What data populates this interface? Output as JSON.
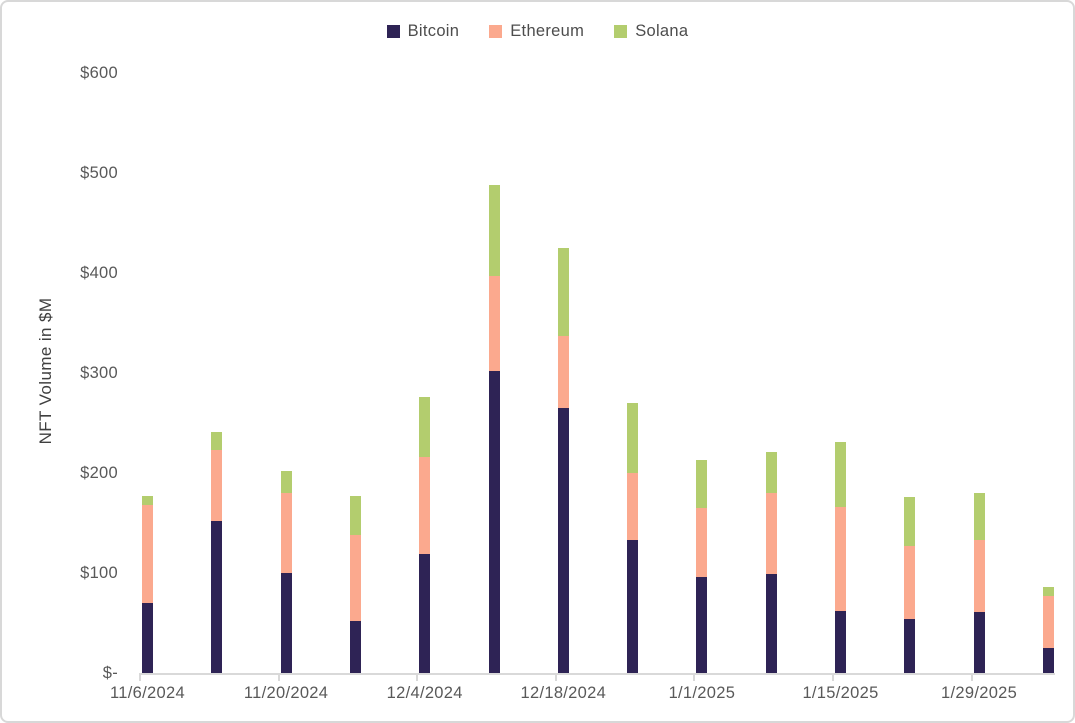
{
  "chart_data": {
    "type": "bar",
    "stacked": true,
    "title": "",
    "xlabel": "",
    "ylabel": "NFT Volume in $M",
    "ylim": [
      0,
      600
    ],
    "y_tick_values": [
      600,
      500,
      400,
      300,
      200,
      100,
      0
    ],
    "y_tick_labels": [
      "$600",
      "$500",
      "$400",
      "$300",
      "$200",
      "$100",
      "$-"
    ],
    "x_tick_labels": [
      "11/6/2024",
      "11/20/2024",
      "12/4/2024",
      "12/18/2024",
      "1/1/2025",
      "1/15/2025",
      "1/29/2025"
    ],
    "categories": [
      "11/6/2024",
      "11/13/2024",
      "11/20/2024",
      "11/27/2024",
      "12/4/2024",
      "12/11/2024",
      "12/18/2024",
      "12/25/2024",
      "1/1/2025",
      "1/8/2025",
      "1/15/2025",
      "1/22/2025",
      "1/29/2025",
      "2/5/2025"
    ],
    "series": [
      {
        "name": "Bitcoin",
        "color": "#2e2355",
        "values": [
          70,
          152,
          100,
          52,
          119,
          302,
          265,
          133,
          96,
          99,
          62,
          54,
          61,
          25
        ]
      },
      {
        "name": "Ethereum",
        "color": "#fba98e",
        "values": [
          98,
          71,
          80,
          86,
          97,
          95,
          72,
          67,
          69,
          81,
          104,
          73,
          72,
          52
        ]
      },
      {
        "name": "Solana",
        "color": "#b3cd6e",
        "values": [
          9,
          18,
          22,
          39,
          60,
          91,
          88,
          70,
          48,
          41,
          65,
          49,
          47,
          9
        ]
      }
    ],
    "stack_totals": [
      177,
      241,
      202,
      177,
      276,
      488,
      425,
      270,
      213,
      221,
      231,
      176,
      180,
      86
    ],
    "legend_position": "top",
    "grid": false
  },
  "style": {
    "axis_color": "#d9d9d9",
    "tick_text_color": "#595959",
    "title_text_color": "#3f3f3f",
    "border_color": "#d8d8d8"
  }
}
